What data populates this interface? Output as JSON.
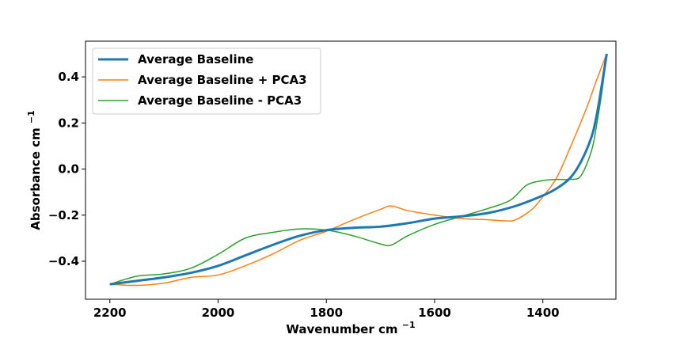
{
  "chart_data": {
    "type": "line",
    "xlabel": "Wavenumber cm",
    "xlabel_sup": "−1",
    "ylabel": "Absorbance cm",
    "ylabel_sup": "−1",
    "xlim": [
      2245,
      1265
    ],
    "ylim": [
      -0.565,
      0.555
    ],
    "x_inverted": true,
    "grid": false,
    "legend_position": "upper-left",
    "x_ticks": [
      2200,
      2000,
      1800,
      1600,
      1400
    ],
    "x_tick_labels": [
      "2200",
      "2000",
      "1800",
      "1600",
      "1400"
    ],
    "y_ticks": [
      -0.4,
      -0.2,
      0.0,
      0.2,
      0.4
    ],
    "y_tick_labels": [
      "−0.4",
      "−0.2",
      "0.0",
      "0.2",
      "0.4"
    ],
    "series": [
      {
        "name": "Average Baseline",
        "color": "#1f77b4",
        "x": [
          2200,
          2150,
          2100,
          2050,
          2000,
          1950,
          1900,
          1850,
          1800,
          1750,
          1700,
          1650,
          1600,
          1550,
          1500,
          1450,
          1400,
          1375,
          1350,
          1330,
          1310,
          1300,
          1290,
          1282
        ],
        "y": [
          -0.5,
          -0.485,
          -0.47,
          -0.45,
          -0.42,
          -0.375,
          -0.33,
          -0.29,
          -0.265,
          -0.255,
          -0.25,
          -0.235,
          -0.215,
          -0.205,
          -0.19,
          -0.16,
          -0.115,
          -0.085,
          -0.04,
          0.03,
          0.14,
          0.24,
          0.38,
          0.5
        ]
      },
      {
        "name": "Average Baseline + PCA3",
        "color": "#ff7f0e",
        "x": [
          2200,
          2150,
          2100,
          2050,
          2000,
          1950,
          1900,
          1850,
          1800,
          1750,
          1700,
          1680,
          1650,
          1600,
          1550,
          1500,
          1470,
          1450,
          1420,
          1400,
          1375,
          1350,
          1320,
          1300,
          1282
        ],
        "y": [
          -0.5,
          -0.505,
          -0.495,
          -0.47,
          -0.46,
          -0.42,
          -0.37,
          -0.31,
          -0.27,
          -0.22,
          -0.175,
          -0.16,
          -0.18,
          -0.2,
          -0.215,
          -0.22,
          -0.225,
          -0.22,
          -0.175,
          -0.12,
          -0.04,
          0.09,
          0.26,
          0.39,
          0.5
        ]
      },
      {
        "name": "Average Baseline - PCA3",
        "color": "#2ca02c",
        "x": [
          2200,
          2150,
          2100,
          2050,
          2000,
          1950,
          1900,
          1850,
          1800,
          1750,
          1700,
          1680,
          1650,
          1600,
          1550,
          1500,
          1460,
          1430,
          1400,
          1375,
          1350,
          1330,
          1310,
          1300,
          1290,
          1282
        ],
        "y": [
          -0.5,
          -0.465,
          -0.455,
          -0.43,
          -0.37,
          -0.3,
          -0.275,
          -0.26,
          -0.265,
          -0.29,
          -0.325,
          -0.33,
          -0.29,
          -0.24,
          -0.205,
          -0.17,
          -0.135,
          -0.07,
          -0.05,
          -0.045,
          -0.045,
          -0.03,
          0.08,
          0.2,
          0.35,
          0.5
        ]
      }
    ]
  }
}
